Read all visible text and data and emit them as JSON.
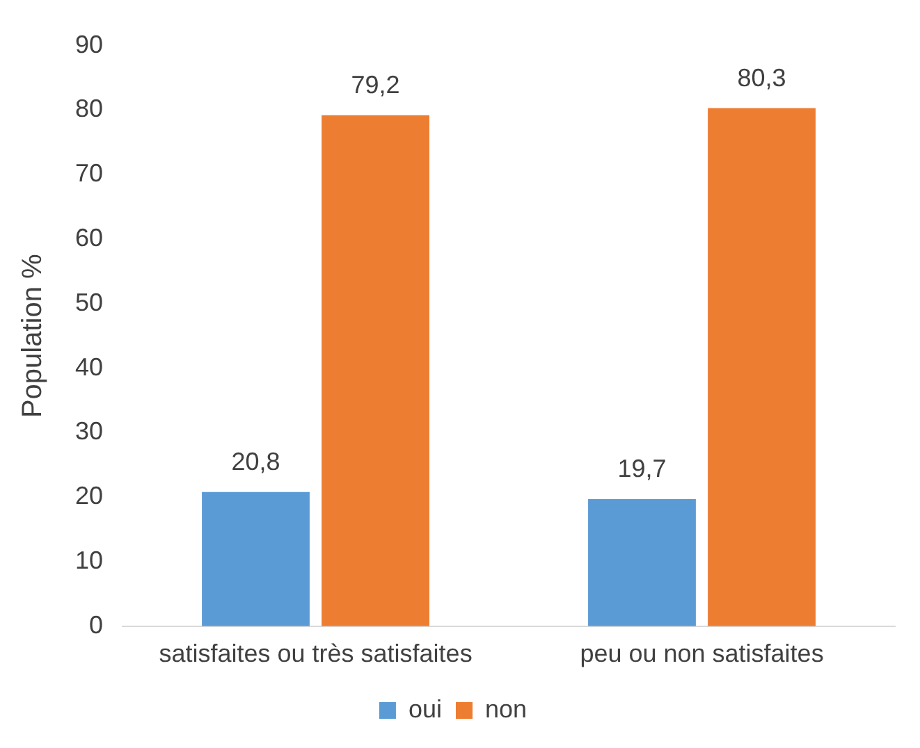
{
  "chart_data": {
    "type": "bar",
    "ylabel": "Population %",
    "categories": [
      "satisfaites ou très satisfaites",
      "peu ou non satisfaites"
    ],
    "series": [
      {
        "name": "oui",
        "color": "#5b9bd5",
        "values": [
          20.8,
          19.7
        ],
        "value_labels": [
          "20,8",
          "19,7"
        ]
      },
      {
        "name": "non",
        "color": "#ed7d31",
        "values": [
          79.2,
          80.3
        ],
        "value_labels": [
          "79,2",
          "80,3"
        ]
      }
    ],
    "ylim": [
      0,
      90
    ],
    "yticks": [
      0,
      10,
      20,
      30,
      40,
      50,
      60,
      70,
      80,
      90
    ],
    "grid": false,
    "legend": "bottom"
  }
}
